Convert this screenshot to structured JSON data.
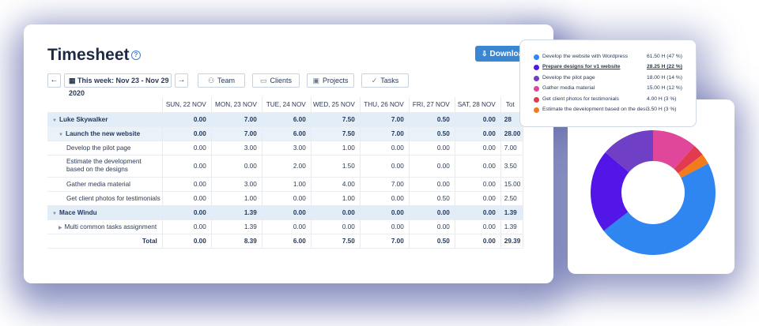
{
  "header": {
    "title": "Timesheet",
    "help_icon": "question-circle-icon",
    "download_label": "Download"
  },
  "toolbar": {
    "prev_icon": "arrow-left-icon",
    "next_icon": "arrow-right-icon",
    "week_label": "This week: Nov 23 - Nov 29 2020",
    "filters": [
      {
        "icon": "team-icon",
        "label": "Team"
      },
      {
        "icon": "folder-icon",
        "label": "Clients"
      },
      {
        "icon": "briefcase-icon",
        "label": "Projects"
      },
      {
        "icon": "check-icon",
        "label": "Tasks"
      }
    ]
  },
  "table": {
    "columns": [
      "SUN, 22 NOV",
      "MON, 23 NOV",
      "TUE, 24 NOV",
      "WED, 25 NOV",
      "THU, 26 NOV",
      "FRI, 27 NOV",
      "SAT, 28 NOV",
      "Tot"
    ],
    "rows": [
      {
        "kind": "person",
        "name": "Luke Skywalker",
        "values": [
          "0.00",
          "7.00",
          "6.00",
          "7.50",
          "7.00",
          "0.50",
          "0.00",
          "28"
        ]
      },
      {
        "kind": "project",
        "name": "Launch the new website",
        "values": [
          "0.00",
          "7.00",
          "6.00",
          "7.50",
          "7.00",
          "0.50",
          "0.00",
          "28.00"
        ]
      },
      {
        "kind": "task",
        "name": "Develop the pilot page",
        "values": [
          "0.00",
          "3.00",
          "3.00",
          "1.00",
          "0.00",
          "0.00",
          "0.00",
          "7.00"
        ]
      },
      {
        "kind": "task-wrap",
        "name": "Estimate the development based on the designs",
        "values": [
          "0.00",
          "0.00",
          "2.00",
          "1.50",
          "0.00",
          "0.00",
          "0.00",
          "3.50"
        ]
      },
      {
        "kind": "task",
        "name": "Gather media material",
        "values": [
          "0.00",
          "3.00",
          "1.00",
          "4.00",
          "7.00",
          "0.00",
          "0.00",
          "15.00"
        ]
      },
      {
        "kind": "task",
        "name": "Get client photos for testimonials",
        "values": [
          "0.00",
          "1.00",
          "0.00",
          "1.00",
          "0.00",
          "0.50",
          "0.00",
          "2.50"
        ]
      },
      {
        "kind": "person",
        "name": "Mace Windu",
        "values": [
          "0.00",
          "1.39",
          "0.00",
          "0.00",
          "0.00",
          "0.00",
          "0.00",
          "1.39"
        ]
      },
      {
        "kind": "task-sub",
        "name": "Multi common tasks assignment",
        "values": [
          "0.00",
          "1.39",
          "0.00",
          "0.00",
          "0.00",
          "0.00",
          "0.00",
          "1.39"
        ]
      },
      {
        "kind": "total",
        "name": "Total",
        "values": [
          "0.00",
          "8.39",
          "6.00",
          "7.50",
          "7.00",
          "0.50",
          "0.00",
          "29.39"
        ]
      }
    ]
  },
  "legend": [
    {
      "label": "Develop the website with Wordpress",
      "value": "61.50 H (47 %)",
      "color": "#2f86f0",
      "highlight": false
    },
    {
      "label": "Prepare designs for v1 website",
      "value": "28.25 H (22 %)",
      "color": "#5216e6",
      "highlight": true
    },
    {
      "label": "Develop the pilot page",
      "value": "18.00 H (14 %)",
      "color": "#6f3fc6",
      "highlight": false
    },
    {
      "label": "Gather media material",
      "value": "15.00 H (12 %)",
      "color": "#e0469a",
      "highlight": false
    },
    {
      "label": "Get client photos for testimonials",
      "value": "4.00 H (3 %)",
      "color": "#e23a4f",
      "highlight": false
    },
    {
      "label": "Estimate the development based on the designs",
      "value": "3.50 H (3 %)",
      "color": "#f27c1c",
      "highlight": false
    }
  ],
  "chart_data": {
    "type": "pie",
    "categories": [
      "Develop the website with Wordpress",
      "Prepare designs for v1 website",
      "Develop the pilot page",
      "Gather media material",
      "Get client photos for testimonials",
      "Estimate the development based on the designs"
    ],
    "values": [
      61.5,
      28.25,
      18.0,
      15.0,
      4.0,
      3.5
    ],
    "colors": [
      "#2f86f0",
      "#5216e6",
      "#6f3fc6",
      "#e0469a",
      "#e23a4f",
      "#f27c1c"
    ],
    "donut": true
  }
}
